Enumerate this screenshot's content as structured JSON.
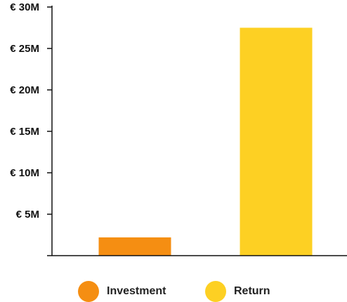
{
  "chart_data": {
    "type": "bar",
    "categories": [
      "Investment",
      "Return"
    ],
    "values": [
      2200000,
      27500000
    ],
    "colors": [
      "#F58E12",
      "#FDD023"
    ],
    "ylim": [
      0,
      30000000
    ],
    "yticks": [
      5000000,
      10000000,
      15000000,
      20000000,
      25000000,
      30000000
    ],
    "ytick_labels": [
      "€ 5M",
      "€ 10M",
      "€ 15M",
      "€ 20M",
      "€ 25M",
      "€ 30M"
    ],
    "title": "",
    "xlabel": "",
    "ylabel": "",
    "grid": false,
    "legend_position": "bottom",
    "legend": [
      {
        "label": "Investment",
        "color": "#F58E12"
      },
      {
        "label": "Return",
        "color": "#FDD023"
      }
    ]
  }
}
